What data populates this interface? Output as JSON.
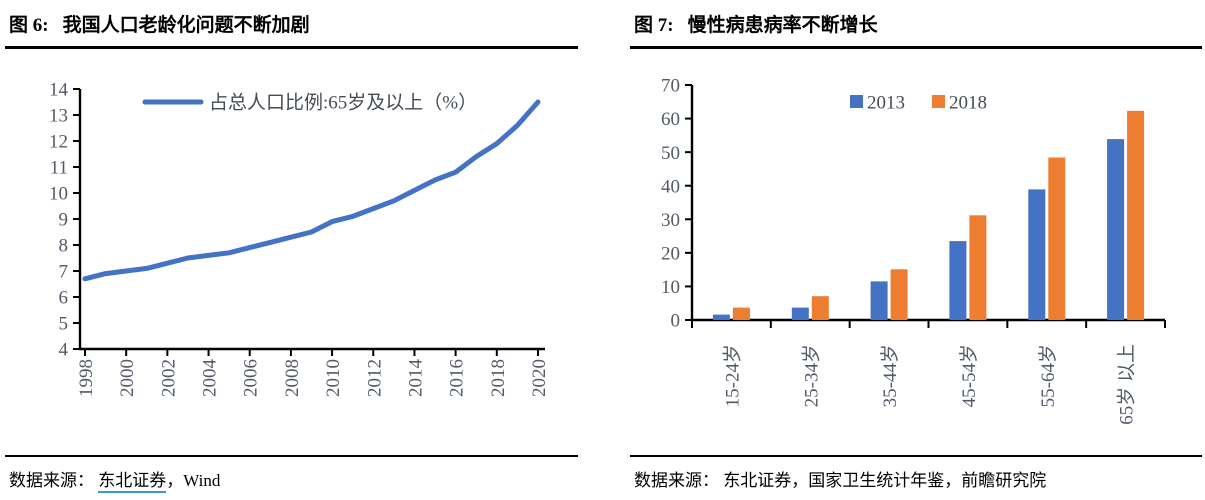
{
  "figure6": {
    "label": "图 6:",
    "title": "我国人口老龄化问题不断加剧",
    "source_prefix": "数据来源：",
    "source_link": "东北证券",
    "source_suffix": "，Wind"
  },
  "figure7": {
    "label": "图 7:",
    "title": "慢性病患病率不断增长",
    "source_prefix": "数据来源：",
    "source_text": "东北证券，国家卫生统计年鉴，前瞻研究院"
  },
  "colors": {
    "line_blue": "#4472C4",
    "bar_blue": "#4472C4",
    "bar_orange": "#ED7D31",
    "axis_black": "#000000",
    "tick_gray": "#525a68"
  },
  "chart_data": [
    {
      "type": "line",
      "title": "图 6: 我国人口老龄化问题不断加剧",
      "legend": [
        "占总人口比例:65岁及以上（%）"
      ],
      "legend_position": "top",
      "x": [
        1998,
        1999,
        2000,
        2001,
        2002,
        2003,
        2004,
        2005,
        2006,
        2007,
        2008,
        2009,
        2010,
        2011,
        2012,
        2013,
        2014,
        2015,
        2016,
        2017,
        2018,
        2019,
        2020
      ],
      "series": [
        {
          "name": "占总人口比例:65岁及以上（%）",
          "color": "#4472C4",
          "values": [
            6.7,
            6.9,
            7.0,
            7.1,
            7.3,
            7.5,
            7.6,
            7.7,
            7.9,
            8.1,
            8.3,
            8.5,
            8.9,
            9.1,
            9.4,
            9.7,
            10.1,
            10.5,
            10.8,
            11.4,
            11.9,
            12.6,
            13.5
          ]
        }
      ],
      "ylim": [
        4,
        14
      ],
      "ytick_step": 1,
      "xtick_step": 2,
      "grid": false
    },
    {
      "type": "bar",
      "title": "图 7: 慢性病患病率不断增长",
      "categories": [
        "15-24岁",
        "25-34岁",
        "35-44岁",
        "45-54岁",
        "55-64岁",
        "65岁 以上"
      ],
      "series": [
        {
          "name": "2013",
          "color": "#4472C4",
          "values": [
            1.6,
            3.7,
            11.5,
            23.5,
            38.9,
            53.9
          ]
        },
        {
          "name": "2018",
          "color": "#ED7D31",
          "values": [
            3.7,
            7.1,
            15.1,
            31.2,
            48.4,
            62.3
          ]
        }
      ],
      "ylim": [
        0,
        70
      ],
      "ytick_step": 10,
      "legend_position": "top",
      "grid": false
    }
  ]
}
